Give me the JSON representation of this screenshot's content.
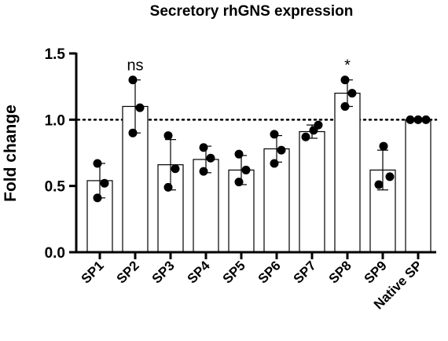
{
  "chart_data": {
    "type": "bar",
    "title": "Secretory rhGNS expression",
    "xlabel": "",
    "ylabel": "Fold change",
    "ylim": [
      0,
      1.5
    ],
    "yticks": [
      "0.0",
      "0.5",
      "1.0",
      "1.5"
    ],
    "reference_line": 1.0,
    "grid": false,
    "categories": [
      "SP1",
      "SP2",
      "SP3",
      "SP4",
      "SP5",
      "SP6",
      "SP7",
      "SP8",
      "SP9",
      "Native SP"
    ],
    "means": [
      0.54,
      1.1,
      0.66,
      0.7,
      0.62,
      0.78,
      0.91,
      1.2,
      0.62,
      1.0
    ],
    "sd": [
      0.13,
      0.2,
      0.19,
      0.1,
      0.11,
      0.1,
      0.05,
      0.1,
      0.15,
      0.0
    ],
    "points": [
      [
        0.67,
        0.52,
        0.41
      ],
      [
        1.3,
        1.09,
        0.9
      ],
      [
        0.88,
        0.63,
        0.49
      ],
      [
        0.79,
        0.71,
        0.61
      ],
      [
        0.74,
        0.62,
        0.53
      ],
      [
        0.89,
        0.77,
        0.67
      ],
      [
        0.87,
        0.92,
        0.96
      ],
      [
        1.3,
        1.2,
        1.1
      ],
      [
        0.8,
        0.57,
        0.51
      ],
      [
        1.0,
        1.0,
        1.0
      ]
    ],
    "annotations": [
      {
        "category": "SP2",
        "text": "ns"
      },
      {
        "category": "SP8",
        "text": "*"
      }
    ]
  },
  "colors": {
    "bar_fill": "#ffffff",
    "stroke": "#000000",
    "point": "#000000"
  }
}
